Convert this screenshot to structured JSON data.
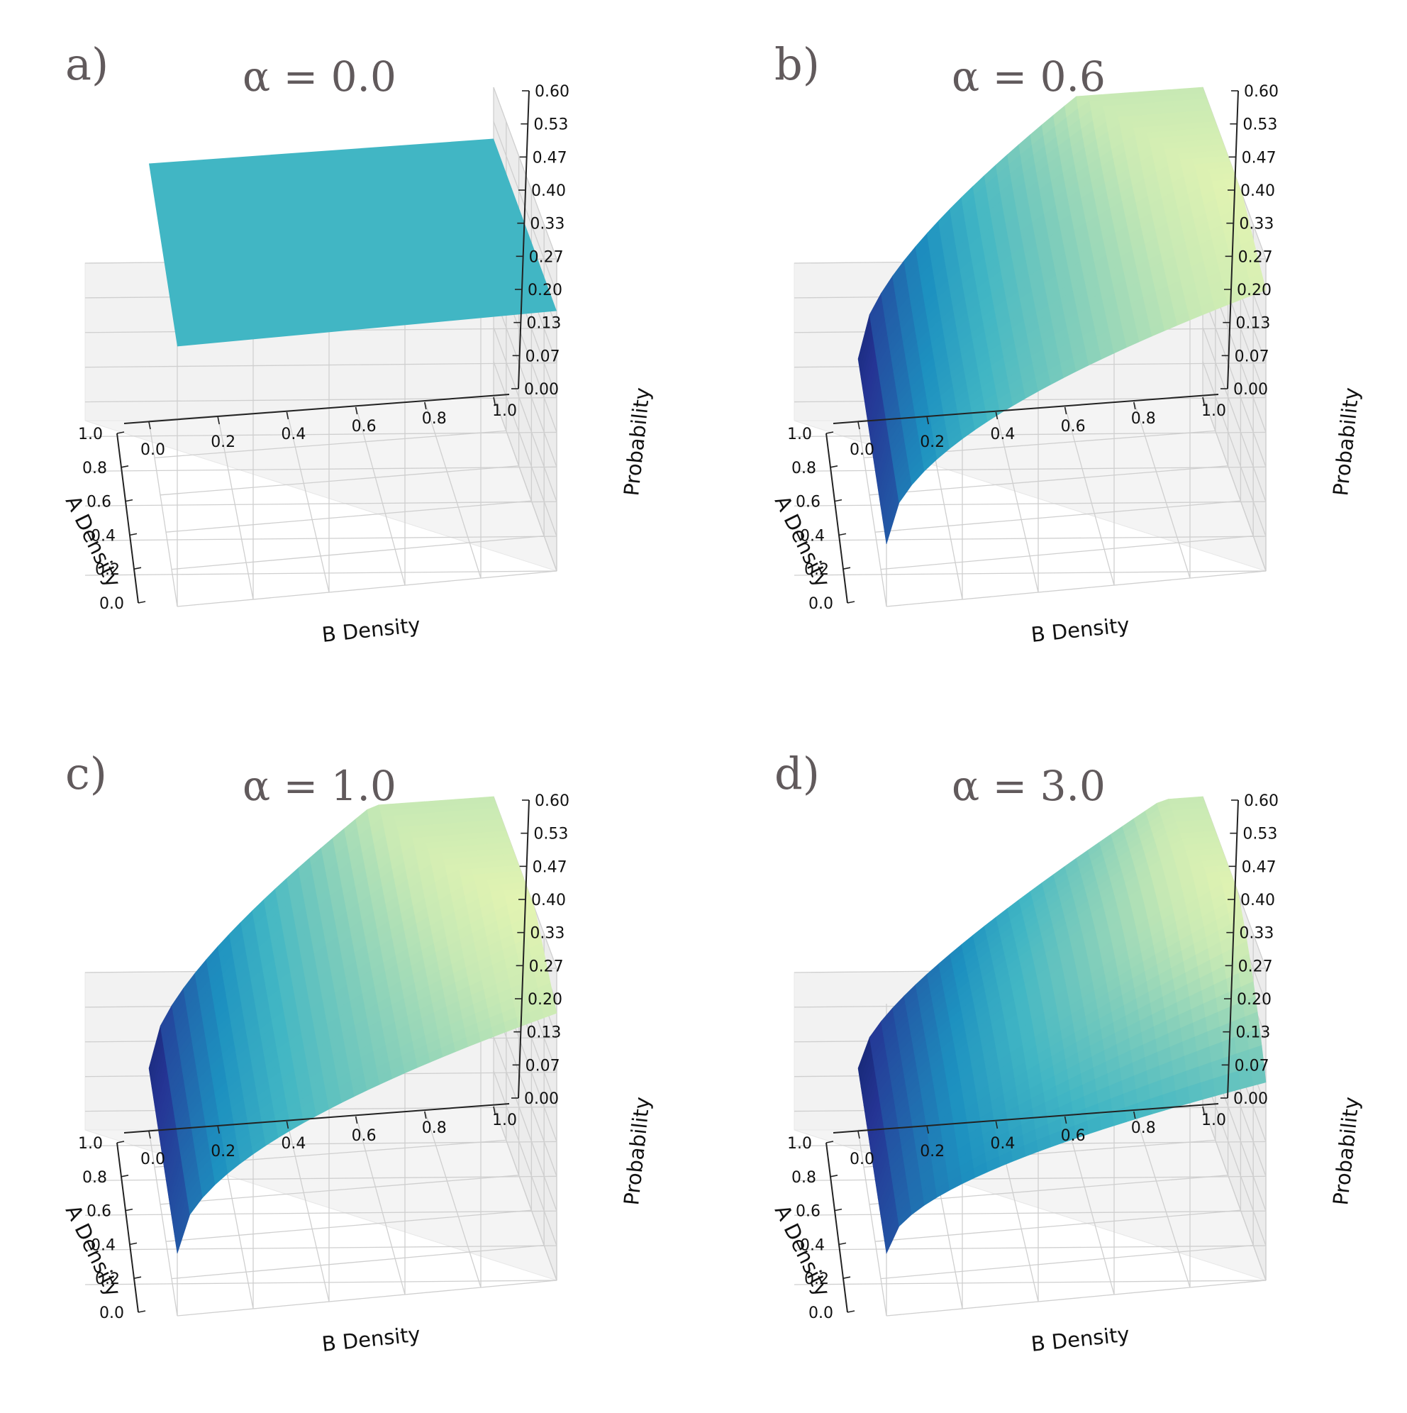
{
  "figure": {
    "colormap": "YlGnBu",
    "panels": [
      {
        "label": "a)",
        "title": "α = 0.0"
      },
      {
        "label": "b)",
        "title": "α = 0.6"
      },
      {
        "label": "c)",
        "title": "α = 1.0"
      },
      {
        "label": "d)",
        "title": "α = 3.0"
      }
    ]
  },
  "chart_data": [
    {
      "type": "surface",
      "title": "α = 0.0",
      "alpha": 0.0,
      "xlabel": "B Density",
      "ylabel": "A Density",
      "zlabel": "Probability",
      "x_ticks": [
        "0.0",
        "0.2",
        "0.4",
        "0.6",
        "0.8",
        "1.0"
      ],
      "y_ticks": [
        "0.0",
        "0.2",
        "0.4",
        "0.6",
        "0.8",
        "1.0"
      ],
      "z_ticks": [
        "0.00",
        "0.07",
        "0.13",
        "0.20",
        "0.27",
        "0.33",
        "0.40",
        "0.47",
        "0.53",
        "0.60"
      ],
      "xlim": [
        0,
        1
      ],
      "ylim": [
        0,
        1
      ],
      "zlim": [
        0,
        0.6
      ],
      "surface_color": "#41b6c4",
      "description_values": {
        "constant_probability": 0.5
      }
    },
    {
      "type": "surface",
      "title": "α = 0.6",
      "alpha": 0.6,
      "xlabel": "B Density",
      "ylabel": "A Density",
      "zlabel": "Probability",
      "x_ticks": [
        "0.0",
        "0.2",
        "0.4",
        "0.6",
        "0.8",
        "1.0"
      ],
      "y_ticks": [
        "0.0",
        "0.2",
        "0.4",
        "0.6",
        "0.8",
        "1.0"
      ],
      "z_ticks": [
        "0.00",
        "0.07",
        "0.13",
        "0.20",
        "0.27",
        "0.33",
        "0.40",
        "0.47",
        "0.53",
        "0.60"
      ],
      "xlim": [
        0,
        1
      ],
      "ylim": [
        0,
        1
      ],
      "zlim": [
        0,
        0.6
      ]
    },
    {
      "type": "surface",
      "title": "α = 1.0",
      "alpha": 1.0,
      "xlabel": "B Density",
      "ylabel": "A Density",
      "zlabel": "Probability",
      "x_ticks": [
        "0.0",
        "0.2",
        "0.4",
        "0.6",
        "0.8",
        "1.0"
      ],
      "y_ticks": [
        "0.0",
        "0.2",
        "0.4",
        "0.6",
        "0.8",
        "1.0"
      ],
      "z_ticks": [
        "0.00",
        "0.07",
        "0.13",
        "0.20",
        "0.27",
        "0.33",
        "0.40",
        "0.47",
        "0.53",
        "0.60"
      ],
      "xlim": [
        0,
        1
      ],
      "ylim": [
        0,
        1
      ],
      "zlim": [
        0,
        0.6
      ]
    },
    {
      "type": "surface",
      "title": "α = 3.0",
      "alpha": 3.0,
      "xlabel": "B Density",
      "ylabel": "A Density",
      "zlabel": "Probability",
      "x_ticks": [
        "0.0",
        "0.2",
        "0.4",
        "0.6",
        "0.8",
        "1.0"
      ],
      "y_ticks": [
        "0.0",
        "0.2",
        "0.4",
        "0.6",
        "0.8",
        "1.0"
      ],
      "z_ticks": [
        "0.00",
        "0.07",
        "0.13",
        "0.20",
        "0.27",
        "0.33",
        "0.40",
        "0.47",
        "0.53",
        "0.60"
      ],
      "xlim": [
        0,
        1
      ],
      "ylim": [
        0,
        1
      ],
      "zlim": [
        0,
        0.6
      ]
    }
  ]
}
